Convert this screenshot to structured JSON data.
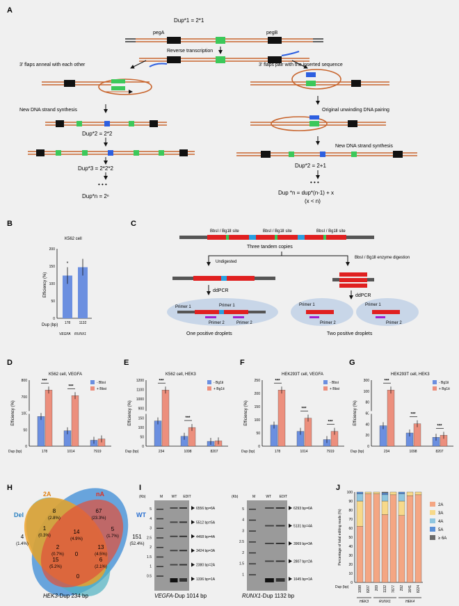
{
  "panels": {
    "A": "A",
    "B": "B",
    "C": "C",
    "D": "D",
    "E": "E",
    "F": "F",
    "G": "G",
    "H": "H",
    "I": "I",
    "J": "J"
  },
  "panelA": {
    "dup1": "Dup*1 = 2*1",
    "pegA": "pegA",
    "pegB": "pegB",
    "rt": "Reverse transcription",
    "left_title": "3' flaps anneal with each other",
    "right_title": "3' flaps pair with the inserted sequence",
    "left_synth": "New DNA strand synthesis",
    "left_dup2": "Dup*2 = 2*2",
    "left_dup3": "Dup*3 = 2*2*2",
    "left_dots": "• • •",
    "left_dupn": "Dup*n = 2ⁿ",
    "right_pair": "Original unwinding DNA pairing",
    "right_synth": "New DNA strand synthesis",
    "right_dup2": "Dup*2 = 2+1",
    "right_dots": "• • •",
    "right_dupn": "Dup *n = dup*(n-1) + x",
    "right_cond": "(x < n)"
  },
  "panelB": {
    "title": "K562 cell",
    "ylabel": "Efficiency (%)",
    "xlabel": "Dup (bp)",
    "sig": "*",
    "groups": [
      "VEGFA",
      "RUNX1"
    ]
  },
  "panelC": {
    "site1": "BbsⅠ / Bg1Ⅱ site",
    "site2": "BbsⅠ / Bg1Ⅱ site",
    "site3": "BbsⅠ / Bg1Ⅱ site",
    "tandem": "Three tandem copies",
    "undigested": "Undigested",
    "enzyme": "BbsⅠ / Bg1Ⅱ enzyme digestion",
    "ddpcr1": "ddPCR",
    "ddpcr2": "ddPCR",
    "primer1": "Primer 1",
    "primer2": "Primer 2",
    "one": "One positive droplets",
    "two": "Two positive droplets"
  },
  "chart_data": [
    {
      "type": "bar",
      "panel": "B",
      "title": "K562 cell",
      "categories": [
        "178",
        "1132"
      ],
      "values": [
        123,
        147
      ],
      "xlabel": "Dup (bp)",
      "ylabel": "Efficiency (%)",
      "ylim": [
        0,
        200
      ],
      "yticks": [
        "0",
        "50",
        "100",
        "150",
        "200"
      ]
    },
    {
      "type": "bar",
      "panel": "D",
      "title": "K562 cell, VEGFA",
      "categories": [
        "178",
        "1014",
        "7919"
      ],
      "series": [
        {
          "name": "- BbsⅠ",
          "values": [
            135,
            70,
            27
          ]
        },
        {
          "name": "+ BbsⅠ",
          "values": [
            810,
            650,
            33
          ]
        }
      ],
      "sig": [
        "***",
        "***",
        ""
      ],
      "yticks": [
        "0",
        "50",
        "100",
        "700",
        "800"
      ],
      "xlabel": "Dup (bp)",
      "ylabel": "Efficiency (%)"
    },
    {
      "type": "bar",
      "panel": "E",
      "title": "K562 cell, HEK3",
      "categories": [
        "234",
        "1098",
        "8207"
      ],
      "series": [
        {
          "name": "- Bg1Ⅱ",
          "values": [
            115,
            45,
            22
          ]
        },
        {
          "name": "+ Bg1Ⅱ",
          "values": [
            960,
            85,
            24
          ]
        }
      ],
      "sig": [
        "***",
        "***",
        ""
      ],
      "yticks": [
        "0",
        "50",
        "100",
        "150",
        "900",
        "1000",
        "1100",
        "1200"
      ],
      "xlabel": "Dup (bp)",
      "ylabel": "Efficiency (%)"
    },
    {
      "type": "bar",
      "panel": "F",
      "title": "HEK293T cell, VEGFA",
      "categories": [
        "178",
        "1014",
        "7919"
      ],
      "series": [
        {
          "name": "- BbsⅠ",
          "values": [
            64,
            45,
            20
          ]
        },
        {
          "name": "+ BbsⅠ",
          "values": [
            170,
            85,
            45
          ]
        }
      ],
      "sig": [
        "***",
        "***",
        "***"
      ],
      "yticks": [
        "0",
        "50",
        "100",
        "150",
        "200",
        "250"
      ],
      "xlabel": "Dup (bp)",
      "ylabel": "Efficiency (%)"
    },
    {
      "type": "bar",
      "panel": "G",
      "title": "HEK293T cell, HEK3",
      "categories": [
        "234",
        "1098",
        "8207"
      ],
      "series": [
        {
          "name": "- Bg1Ⅱ",
          "values": [
            62,
            40,
            27
          ]
        },
        {
          "name": "+ Bg1Ⅱ",
          "values": [
            290,
            68,
            33
          ]
        }
      ],
      "sig": [
        "***",
        "***",
        "***"
      ],
      "yticks": [
        "0",
        "20",
        "40",
        "60",
        "80",
        "100",
        "300"
      ],
      "xlabel": "Dup (bp)",
      "ylabel": "Efficiency (%)"
    },
    {
      "type": "bar",
      "panel": "J",
      "categories": [
        "1098",
        "8207",
        "269",
        "1132",
        "7677",
        "292",
        "1641",
        "8224"
      ],
      "groups": [
        "HEK3",
        "RUNX1",
        "HEK4"
      ],
      "series": [
        {
          "name": "2A",
          "values": [
            62,
            98,
            98,
            75,
            97,
            74,
            96,
            97
          ]
        },
        {
          "name": "3A",
          "values": [
            28,
            2,
            2,
            15,
            3,
            16,
            4,
            3
          ]
        },
        {
          "name": "4A",
          "values": [
            8,
            0,
            0,
            7,
            0,
            8,
            0,
            0
          ]
        },
        {
          "name": "5A",
          "values": [
            2,
            0,
            0,
            2,
            0,
            2,
            0,
            0
          ]
        },
        {
          "name": "≥ 6A",
          "values": [
            0,
            0,
            0,
            1,
            0,
            0,
            0,
            0
          ]
        }
      ],
      "xlabel": "Dup (bp)",
      "ylabel": "Percentage of total editing reads (%)",
      "ylim": [
        0,
        100
      ],
      "yticks": [
        "0",
        "10",
        "20",
        "30",
        "40",
        "50",
        "60",
        "70",
        "80",
        "90",
        "100"
      ]
    }
  ],
  "panelH": {
    "labels": {
      "del": "Del",
      "twoA": "2A",
      "nA": "nA",
      "wt": "WT"
    },
    "regions": [
      {
        "n": "4",
        "p": "(1.4%)"
      },
      {
        "n": "8",
        "p": "(2.8%)"
      },
      {
        "n": "67",
        "p": "(23.3%)"
      },
      {
        "n": "151",
        "p": "(52.4%)"
      },
      {
        "n": "1",
        "p": "(0.3%)"
      },
      {
        "n": "14",
        "p": "(4.9%)"
      },
      {
        "n": "5",
        "p": "(1.7%)"
      },
      {
        "n": "2",
        "p": "(0.7%)"
      },
      {
        "n": "13",
        "p": "(4.5%)"
      },
      {
        "n": "15",
        "p": "(5.2%)"
      },
      {
        "n": "0",
        "p": ""
      },
      {
        "n": "6",
        "p": "(2.1%)"
      },
      {
        "n": "0",
        "p": ""
      }
    ],
    "caption_gene": "HEK3",
    "caption_rest": "-Dup 234 bp"
  },
  "panelI": {
    "gel1": {
      "kb": "(Kb)",
      "lanes": [
        "M",
        "WT",
        "EDIT"
      ],
      "marker": [
        "5",
        "4",
        "3",
        "2.5",
        "2",
        "1.5",
        "1",
        "0.5"
      ],
      "bands": [
        "6556 bp=6A",
        "5512 bp=5A",
        "4468 bp=4A",
        "3424 bp=3A",
        "2380 bp=2A",
        "1336 bp=1A"
      ],
      "caption_gene": "VEGFA",
      "caption_rest": "-Dup 1014 bp"
    },
    "gel2": {
      "kb": "(Kb)",
      "lanes": [
        "M",
        "WT",
        "EDIT"
      ],
      "marker": [
        "5",
        "4",
        "3",
        "2.5",
        "2",
        "1.5",
        "1"
      ],
      "bands": [
        "6293 bp=6A",
        "5131 bp=4A",
        "3969 bp=3A",
        "2807 bp=2A",
        "1645 bp=1A"
      ],
      "caption_gene": "RUNX1",
      "caption_rest": "-Dup 1132 bp"
    }
  },
  "colors": {
    "blue": "#6b8fe0",
    "salmon": "#ec8f7d",
    "orange_line": "#c8642c",
    "green": "#3cc85a"
  }
}
